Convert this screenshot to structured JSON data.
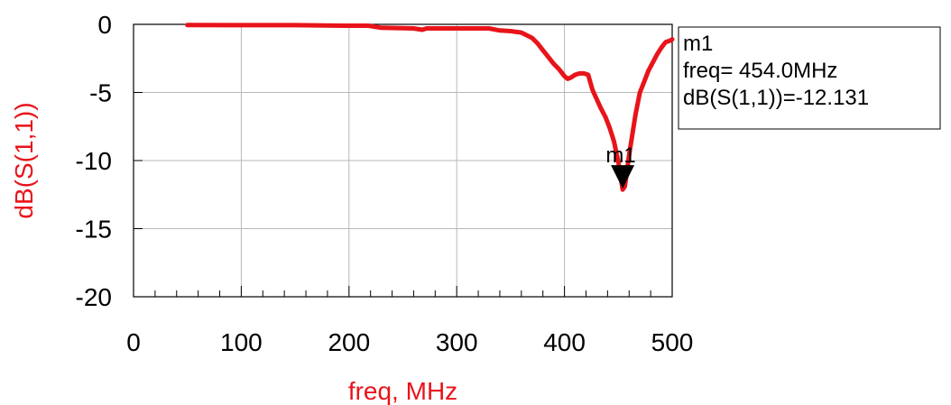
{
  "chart_data": {
    "type": "line",
    "xlabel": "freq, MHz",
    "ylabel": "dB(S(1,1))",
    "xlim": [
      0,
      500
    ],
    "ylim": [
      -20,
      0
    ],
    "xticks": [
      "0",
      "100",
      "200",
      "300",
      "400",
      "500"
    ],
    "yticks": [
      "0",
      "-5",
      "-10",
      "-15",
      "-20"
    ],
    "grid": true,
    "series": [
      {
        "color": "#e8141a",
        "x": [
          50,
          100,
          150,
          200,
          218,
          230,
          260,
          268,
          272,
          300,
          330,
          340,
          350,
          360,
          365,
          370,
          375,
          380,
          385,
          390,
          395,
          400,
          403,
          406,
          410,
          414,
          418,
          422,
          426,
          430,
          434,
          438,
          442,
          446,
          450,
          452,
          454,
          456,
          458,
          460,
          462,
          464,
          466,
          468,
          470,
          474,
          478,
          482,
          486,
          490,
          494,
          498,
          500
        ],
        "y": [
          -0.05,
          -0.06,
          -0.06,
          -0.1,
          -0.1,
          -0.25,
          -0.3,
          -0.4,
          -0.3,
          -0.3,
          -0.3,
          -0.45,
          -0.5,
          -0.6,
          -0.8,
          -1.0,
          -1.4,
          -1.9,
          -2.4,
          -2.9,
          -3.3,
          -3.8,
          -4.0,
          -3.9,
          -3.7,
          -3.6,
          -3.6,
          -3.7,
          -4.8,
          -5.5,
          -6.2,
          -6.8,
          -7.6,
          -8.6,
          -10.1,
          -11.1,
          -12.131,
          -11.9,
          -10.8,
          -9.6,
          -8.6,
          -7.6,
          -6.6,
          -5.8,
          -5.0,
          -4.2,
          -3.4,
          -2.8,
          -2.2,
          -1.7,
          -1.3,
          -1.2,
          -1.1
        ]
      }
    ],
    "marker": {
      "name": "m1",
      "x": 454.0,
      "y": -12.131,
      "lines": [
        "m1",
        "freq= 454.0MHz",
        "dB(S(1,1))=-12.131"
      ]
    }
  }
}
